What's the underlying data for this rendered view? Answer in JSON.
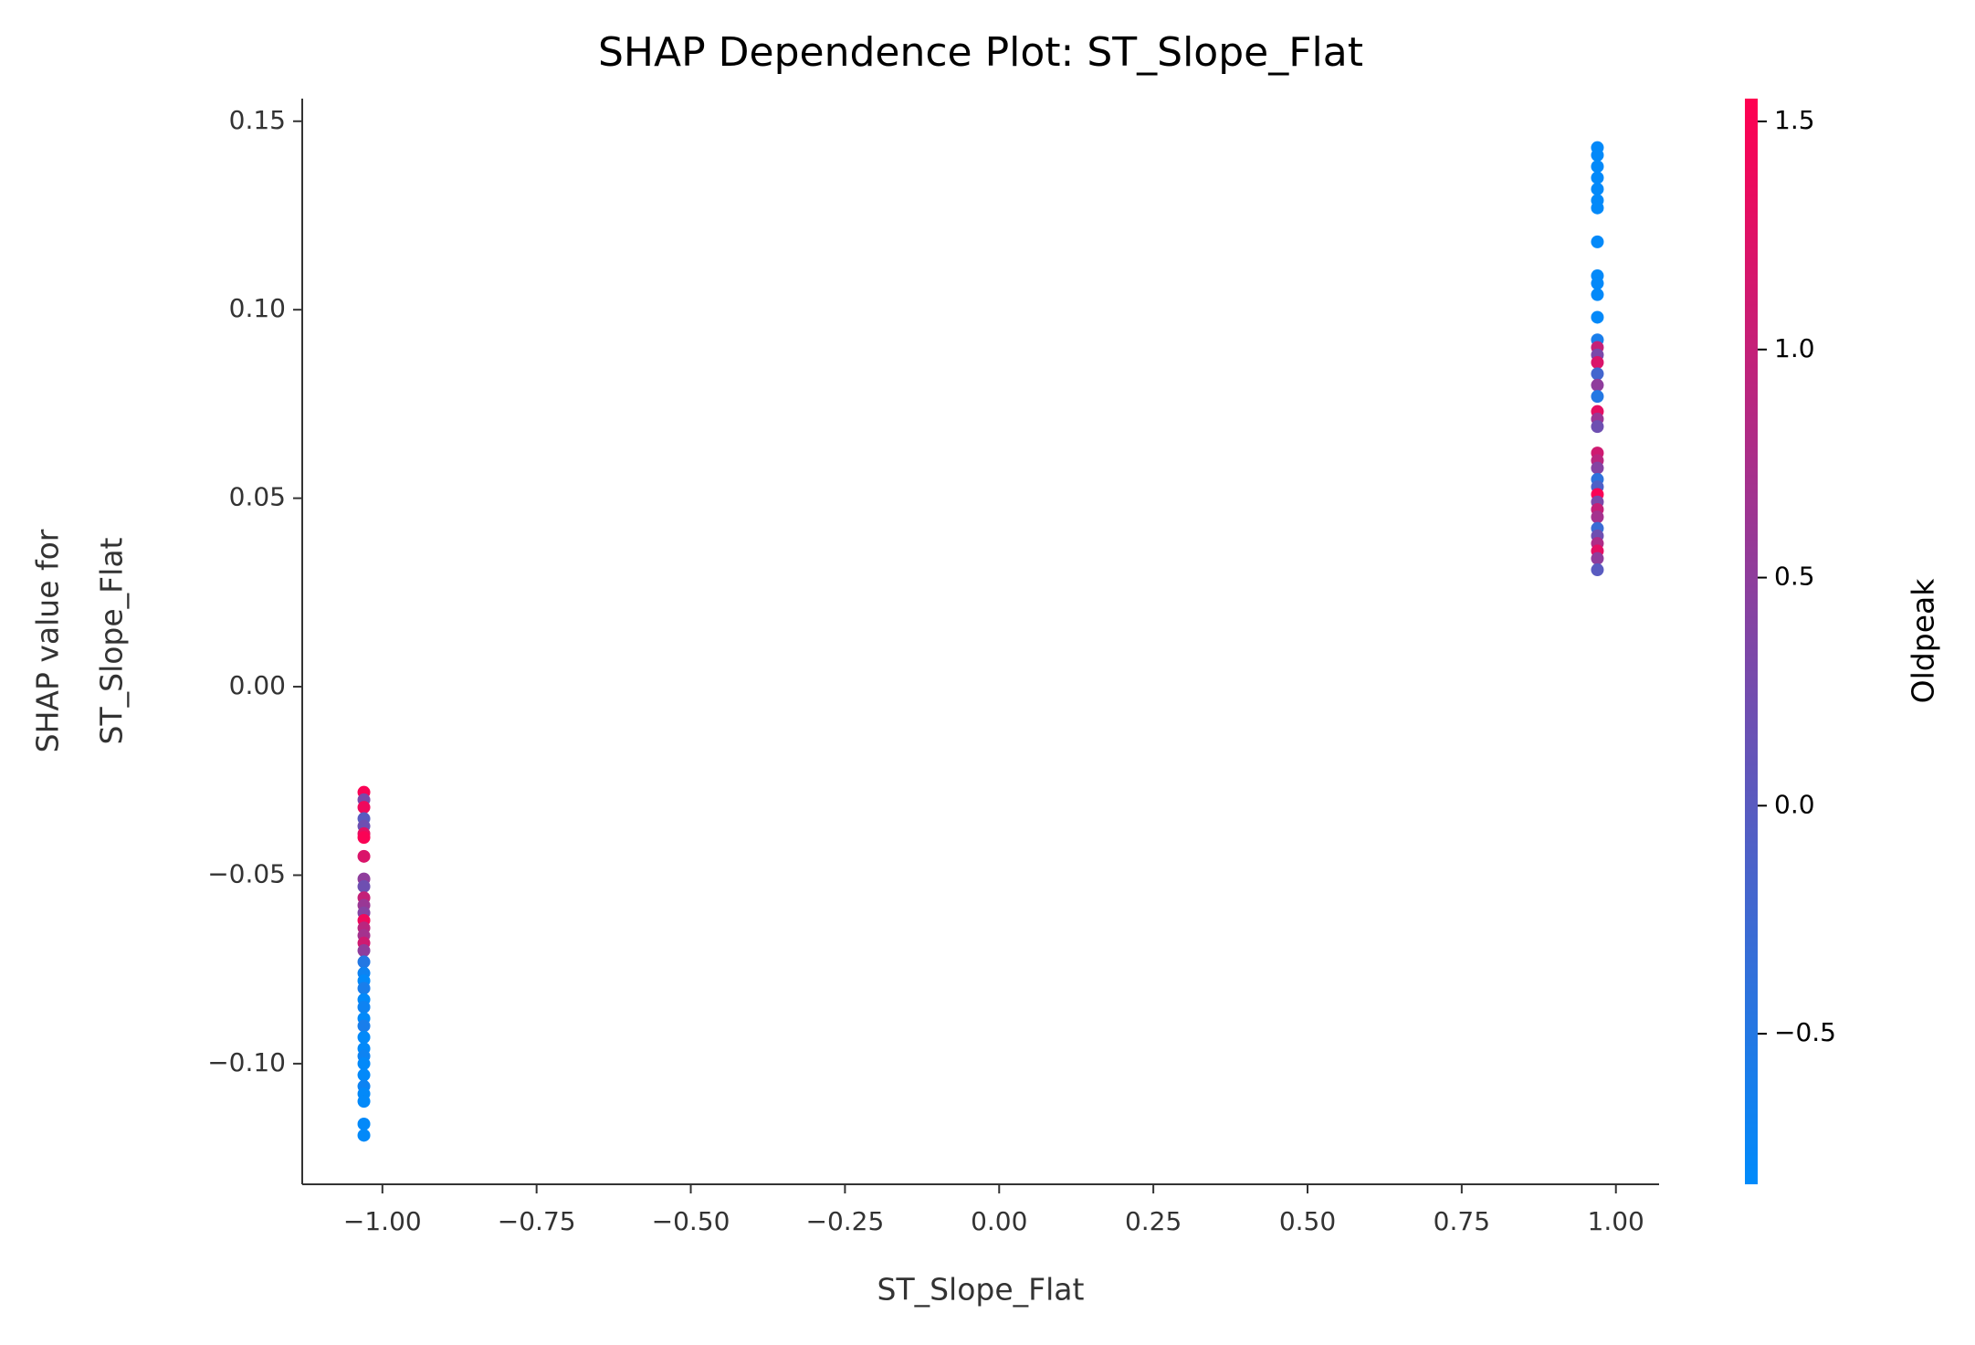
{
  "chart_data": {
    "type": "scatter",
    "title": "SHAP Dependence Plot: ST_Slope_Flat",
    "xlabel": "ST_Slope_Flat",
    "ylabel": [
      "SHAP value for",
      "ST_Slope_Flat"
    ],
    "colorbar_label": "Oldpeak",
    "cmap": [
      "#008bfb",
      "#ff0051"
    ],
    "xlim": [
      -1.13,
      1.07
    ],
    "ylim": [
      -0.132,
      0.156
    ],
    "clim": [
      -0.83,
      1.55
    ],
    "xticks": [
      {
        "value": -1,
        "label": "−1.00"
      },
      {
        "value": -0.75,
        "label": "−0.75"
      },
      {
        "value": -0.5,
        "label": "−0.50"
      },
      {
        "value": -0.25,
        "label": "−0.25"
      },
      {
        "value": 0,
        "label": "0.00"
      },
      {
        "value": 0.25,
        "label": "0.25"
      },
      {
        "value": 0.5,
        "label": "0.50"
      },
      {
        "value": 0.75,
        "label": "0.75"
      },
      {
        "value": 1,
        "label": "1.00"
      }
    ],
    "yticks": [
      {
        "value": -0.1,
        "label": "−0.10"
      },
      {
        "value": -0.05,
        "label": "−0.05"
      },
      {
        "value": 0,
        "label": "0.00"
      },
      0.05,
      {
        "value": 0.1,
        "label": "0.10"
      },
      0.15
    ],
    "cticks": [
      {
        "value": -0.5,
        "label": "−0.5"
      },
      {
        "value": 0,
        "label": "0.0"
      },
      0.5,
      {
        "value": 1,
        "label": "1.0"
      },
      1.5
    ],
    "x": [
      -1.03,
      -1.03,
      -1.03,
      -1.03,
      -1.03,
      -1.03,
      -1.03,
      -1.03,
      -1.03,
      -1.03,
      -1.03,
      -1.03,
      -1.03,
      -1.03,
      -1.03,
      -1.03,
      -1.03,
      -1.03,
      -1.03,
      -1.03,
      -1.03,
      -1.03,
      -1.03,
      -1.03,
      -1.03,
      -1.03,
      -1.03,
      -1.03,
      -1.03,
      -1.03,
      -1.03,
      -1.03,
      -1.03,
      -1.03,
      -1.03,
      -1.03,
      0.97,
      0.97,
      0.97,
      0.97,
      0.97,
      0.97,
      0.97,
      0.97,
      0.97,
      0.97,
      0.97,
      0.97,
      0.97,
      0.97,
      0.97,
      0.97,
      0.97,
      0.97,
      0.97,
      0.97,
      0.97,
      0.97,
      0.97,
      0.97,
      0.97,
      0.97,
      0.97,
      0.97,
      0.97,
      0.97,
      0.97,
      0.97,
      0.97,
      0.97,
      0.97,
      0.97,
      0.97
    ],
    "y": [
      -0.028,
      -0.03,
      -0.032,
      -0.035,
      -0.037,
      -0.039,
      -0.04,
      -0.045,
      -0.051,
      -0.053,
      -0.056,
      -0.058,
      -0.06,
      -0.062,
      -0.064,
      -0.066,
      -0.068,
      -0.07,
      -0.073,
      -0.076,
      -0.078,
      -0.08,
      -0.083,
      -0.085,
      -0.088,
      -0.09,
      -0.093,
      -0.096,
      -0.098,
      -0.1,
      -0.103,
      -0.106,
      -0.108,
      -0.11,
      -0.116,
      -0.119,
      0.143,
      0.141,
      0.138,
      0.135,
      0.132,
      0.129,
      0.127,
      0.118,
      0.109,
      0.107,
      0.104,
      0.098,
      0.092,
      0.09,
      0.088,
      0.086,
      0.083,
      0.08,
      0.077,
      0.073,
      0.071,
      0.069,
      0.062,
      0.06,
      0.058,
      0.055,
      0.053,
      0.051,
      0.049,
      0.047,
      0.045,
      0.042,
      0.04,
      0.038,
      0.036,
      0.034,
      0.031
    ],
    "c": [
      1.5,
      0.3,
      1.4,
      0.0,
      0.2,
      1.3,
      1.5,
      1.2,
      0.5,
      0.2,
      1.0,
      0.6,
      0.4,
      1.4,
      0.9,
      0.7,
      1.1,
      0.5,
      -0.5,
      -0.7,
      -0.8,
      -0.6,
      -0.8,
      -0.7,
      -0.8,
      -0.6,
      -0.8,
      -0.8,
      -0.7,
      -0.8,
      -0.8,
      -0.7,
      -0.8,
      -0.8,
      -0.8,
      -0.8,
      -0.8,
      -0.8,
      -0.8,
      -0.8,
      -0.8,
      -0.8,
      -0.8,
      -0.8,
      -0.8,
      -0.8,
      -0.8,
      -0.8,
      -0.6,
      1.0,
      0.3,
      1.2,
      -0.2,
      0.5,
      -0.5,
      1.3,
      0.6,
      0.2,
      1.1,
      0.9,
      0.4,
      -0.4,
      -0.1,
      1.5,
      0.3,
      1.0,
      0.7,
      -0.3,
      0.2,
      0.8,
      1.3,
      0.5,
      0.0
    ]
  }
}
